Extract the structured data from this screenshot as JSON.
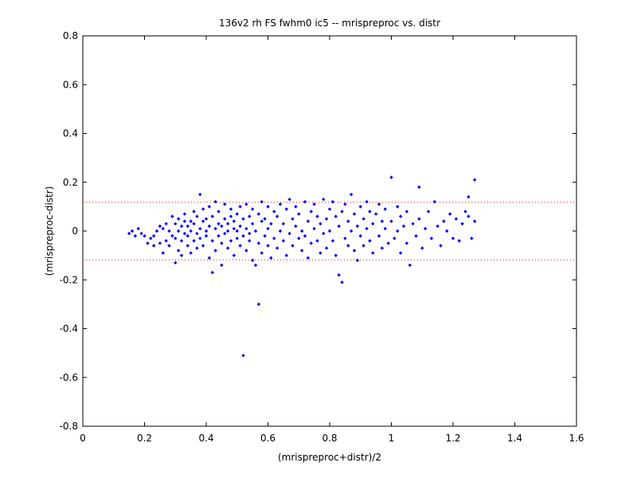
{
  "chart_data": {
    "type": "scatter",
    "title": "136v2 rh FS fwhm0 ic5 -- mrispreproc vs. distr",
    "xlabel": "(mrispreproc+distr)/2",
    "ylabel": "(mrispreproc-distr)",
    "xlim": [
      0,
      1.6
    ],
    "ylim": [
      -0.8,
      0.8
    ],
    "xticks": [
      0,
      0.2,
      0.4,
      0.6,
      0.8,
      1,
      1.2,
      1.4,
      1.6
    ],
    "yticks": [
      -0.8,
      -0.6,
      -0.4,
      -0.2,
      0,
      0.2,
      0.4,
      0.6,
      0.8
    ],
    "xtick_labels": [
      "0",
      "0.2",
      "0.4",
      "0.6",
      "0.8",
      "1",
      "1.2",
      "1.4",
      "1.6"
    ],
    "ytick_labels": [
      "-0.8",
      "-0.6",
      "-0.4",
      "-0.2",
      "0",
      "0.2",
      "0.4",
      "0.6",
      "0.8"
    ],
    "grid": false,
    "reference_lines": [
      0.118,
      -0.118
    ],
    "colors": {
      "points": "#0000ff",
      "reference_lines": "#ff0000",
      "axes": "#000000"
    },
    "series": [
      {
        "points": [
          [
            0.15,
            -0.01
          ],
          [
            0.16,
            0.0
          ],
          [
            0.17,
            -0.02
          ],
          [
            0.18,
            0.01
          ],
          [
            0.19,
            -0.01
          ],
          [
            0.2,
            -0.02
          ],
          [
            0.21,
            -0.05
          ],
          [
            0.22,
            -0.03
          ],
          [
            0.23,
            -0.06
          ],
          [
            0.23,
            -0.02
          ],
          [
            0.24,
            0.0
          ],
          [
            0.25,
            0.02
          ],
          [
            0.25,
            -0.05
          ],
          [
            0.26,
            -0.09
          ],
          [
            0.26,
            0.01
          ],
          [
            0.27,
            -0.04
          ],
          [
            0.27,
            0.03
          ],
          [
            0.28,
            -0.06
          ],
          [
            0.28,
            0.0
          ],
          [
            0.29,
            0.06
          ],
          [
            0.29,
            -0.02
          ],
          [
            0.3,
            -0.13
          ],
          [
            0.3,
            0.03
          ],
          [
            0.3,
            -0.03
          ],
          [
            0.31,
            0.05
          ],
          [
            0.31,
            -0.08
          ],
          [
            0.31,
            0.0
          ],
          [
            0.32,
            0.02
          ],
          [
            0.32,
            -0.04
          ],
          [
            0.32,
            -0.1
          ],
          [
            0.33,
            0.04
          ],
          [
            0.33,
            -0.01
          ],
          [
            0.33,
            0.07
          ],
          [
            0.34,
            -0.06
          ],
          [
            0.34,
            0.02
          ],
          [
            0.34,
            -0.02
          ],
          [
            0.35,
            0.04
          ],
          [
            0.35,
            -0.09
          ],
          [
            0.35,
            0.0
          ],
          [
            0.36,
            0.08
          ],
          [
            0.36,
            -0.04
          ],
          [
            0.36,
            0.03
          ],
          [
            0.37,
            -0.01
          ],
          [
            0.37,
            0.06
          ],
          [
            0.37,
            -0.07
          ],
          [
            0.38,
            0.15
          ],
          [
            0.38,
            0.01
          ],
          [
            0.38,
            -0.03
          ],
          [
            0.39,
            0.04
          ],
          [
            0.39,
            -0.06
          ],
          [
            0.39,
            0.09
          ],
          [
            0.4,
            0.0
          ],
          [
            0.4,
            -0.02
          ],
          [
            0.4,
            0.05
          ],
          [
            0.41,
            -0.11
          ],
          [
            0.41,
            0.02
          ],
          [
            0.41,
            0.1
          ],
          [
            0.42,
            -0.17
          ],
          [
            0.42,
            -0.04
          ],
          [
            0.42,
            0.06
          ],
          [
            0.43,
            0.01
          ],
          [
            0.43,
            -0.08
          ],
          [
            0.43,
            0.12
          ],
          [
            0.44,
            0.03
          ],
          [
            0.44,
            -0.02
          ],
          [
            0.44,
            0.08
          ],
          [
            0.45,
            -0.05
          ],
          [
            0.45,
            0.02
          ],
          [
            0.45,
            -0.14
          ],
          [
            0.46,
            0.05
          ],
          [
            0.46,
            -0.01
          ],
          [
            0.46,
            0.11
          ],
          [
            0.47,
            -0.07
          ],
          [
            0.47,
            0.03
          ],
          [
            0.47,
            0.0
          ],
          [
            0.48,
            0.09
          ],
          [
            0.48,
            -0.04
          ],
          [
            0.48,
            0.06
          ],
          [
            0.49,
            -0.1
          ],
          [
            0.49,
            0.01
          ],
          [
            0.49,
            0.04
          ],
          [
            0.5,
            -0.03
          ],
          [
            0.5,
            0.07
          ],
          [
            0.5,
            0.0
          ],
          [
            0.51,
            -0.06
          ],
          [
            0.51,
            0.1
          ],
          [
            0.51,
            0.02
          ],
          [
            0.52,
            -0.51
          ],
          [
            0.52,
            -0.02
          ],
          [
            0.52,
            0.05
          ],
          [
            0.53,
            -0.08
          ],
          [
            0.53,
            0.11
          ],
          [
            0.53,
            0.01
          ],
          [
            0.54,
            -0.04
          ],
          [
            0.54,
            0.06
          ],
          [
            0.54,
            -0.01
          ],
          [
            0.55,
            0.09
          ],
          [
            0.55,
            -0.12
          ],
          [
            0.55,
            0.03
          ],
          [
            0.56,
            -0.14
          ],
          [
            0.56,
            0.0
          ],
          [
            0.57,
            -0.3
          ],
          [
            0.57,
            0.07
          ],
          [
            0.57,
            -0.05
          ],
          [
            0.58,
            0.04
          ],
          [
            0.58,
            -0.09
          ],
          [
            0.58,
            0.12
          ],
          [
            0.59,
            -0.02
          ],
          [
            0.59,
            0.05
          ],
          [
            0.6,
            -0.06
          ],
          [
            0.6,
            0.1
          ],
          [
            0.6,
            0.01
          ],
          [
            0.61,
            -0.11
          ],
          [
            0.61,
            0.03
          ],
          [
            0.62,
            0.08
          ],
          [
            0.62,
            -0.03
          ],
          [
            0.63,
            -0.07
          ],
          [
            0.63,
            0.06
          ],
          [
            0.64,
            0.0
          ],
          [
            0.64,
            0.11
          ],
          [
            0.65,
            -0.04
          ],
          [
            0.65,
            0.03
          ],
          [
            0.66,
            -0.1
          ],
          [
            0.66,
            0.09
          ],
          [
            0.67,
            0.13
          ],
          [
            0.67,
            -0.01
          ],
          [
            0.68,
            0.05
          ],
          [
            0.68,
            -0.06
          ],
          [
            0.69,
            0.02
          ],
          [
            0.69,
            0.1
          ],
          [
            0.7,
            -0.03
          ],
          [
            0.7,
            0.07
          ],
          [
            0.71,
            -0.08
          ],
          [
            0.71,
            0.0
          ],
          [
            0.72,
            0.12
          ],
          [
            0.72,
            -0.02
          ],
          [
            0.73,
            0.04
          ],
          [
            0.73,
            -0.11
          ],
          [
            0.74,
            0.08
          ],
          [
            0.74,
            -0.05
          ],
          [
            0.75,
            0.01
          ],
          [
            0.75,
            0.11
          ],
          [
            0.76,
            -0.04
          ],
          [
            0.76,
            0.06
          ],
          [
            0.77,
            -0.09
          ],
          [
            0.77,
            0.03
          ],
          [
            0.78,
            0.13
          ],
          [
            0.78,
            -0.01
          ],
          [
            0.79,
            0.05
          ],
          [
            0.79,
            -0.07
          ],
          [
            0.8,
            0.09
          ],
          [
            0.8,
            0.0
          ],
          [
            0.81,
            -0.04
          ],
          [
            0.81,
            0.12
          ],
          [
            0.82,
            0.06
          ],
          [
            0.82,
            -0.1
          ],
          [
            0.83,
            -0.18
          ],
          [
            0.83,
            0.02
          ],
          [
            0.84,
            -0.21
          ],
          [
            0.84,
            0.08
          ],
          [
            0.85,
            -0.03
          ],
          [
            0.85,
            0.11
          ],
          [
            0.86,
            0.04
          ],
          [
            0.86,
            -0.06
          ],
          [
            0.87,
            0.15
          ],
          [
            0.87,
            0.0
          ],
          [
            0.88,
            -0.08
          ],
          [
            0.88,
            0.07
          ],
          [
            0.89,
            0.02
          ],
          [
            0.89,
            -0.12
          ],
          [
            0.9,
            0.1
          ],
          [
            0.9,
            -0.02
          ],
          [
            0.91,
            0.05
          ],
          [
            0.91,
            -0.06
          ],
          [
            0.92,
            0.12
          ],
          [
            0.92,
            0.01
          ],
          [
            0.93,
            -0.04
          ],
          [
            0.93,
            0.08
          ],
          [
            0.94,
            -0.09
          ],
          [
            0.94,
            0.03
          ],
          [
            0.95,
            0.07
          ],
          [
            0.96,
            -0.02
          ],
          [
            0.96,
            0.11
          ],
          [
            0.97,
            0.04
          ],
          [
            0.97,
            -0.07
          ],
          [
            0.98,
            0.01
          ],
          [
            0.98,
            0.09
          ],
          [
            0.99,
            -0.05
          ],
          [
            1.0,
            0.22
          ],
          [
            1.0,
            0.04
          ],
          [
            1.01,
            -0.03
          ],
          [
            1.02,
            0.1
          ],
          [
            1.02,
            0.0
          ],
          [
            1.03,
            -0.09
          ],
          [
            1.03,
            0.06
          ],
          [
            1.04,
            0.02
          ],
          [
            1.05,
            -0.05
          ],
          [
            1.05,
            0.08
          ],
          [
            1.06,
            -0.14
          ],
          [
            1.07,
            0.03
          ],
          [
            1.08,
            -0.02
          ],
          [
            1.09,
            0.05
          ],
          [
            1.09,
            0.18
          ],
          [
            1.1,
            -0.07
          ],
          [
            1.11,
            0.01
          ],
          [
            1.12,
            0.08
          ],
          [
            1.13,
            -0.03
          ],
          [
            1.14,
            0.12
          ],
          [
            1.15,
            0.02
          ],
          [
            1.16,
            -0.06
          ],
          [
            1.17,
            0.04
          ],
          [
            1.18,
            0.0
          ],
          [
            1.19,
            0.07
          ],
          [
            1.2,
            -0.03
          ],
          [
            1.21,
            0.05
          ],
          [
            1.22,
            -0.04
          ],
          [
            1.23,
            0.03
          ],
          [
            1.24,
            0.08
          ],
          [
            1.25,
            0.14
          ],
          [
            1.25,
            0.06
          ],
          [
            1.26,
            -0.03
          ],
          [
            1.27,
            0.21
          ],
          [
            1.27,
            0.04
          ]
        ]
      }
    ]
  }
}
